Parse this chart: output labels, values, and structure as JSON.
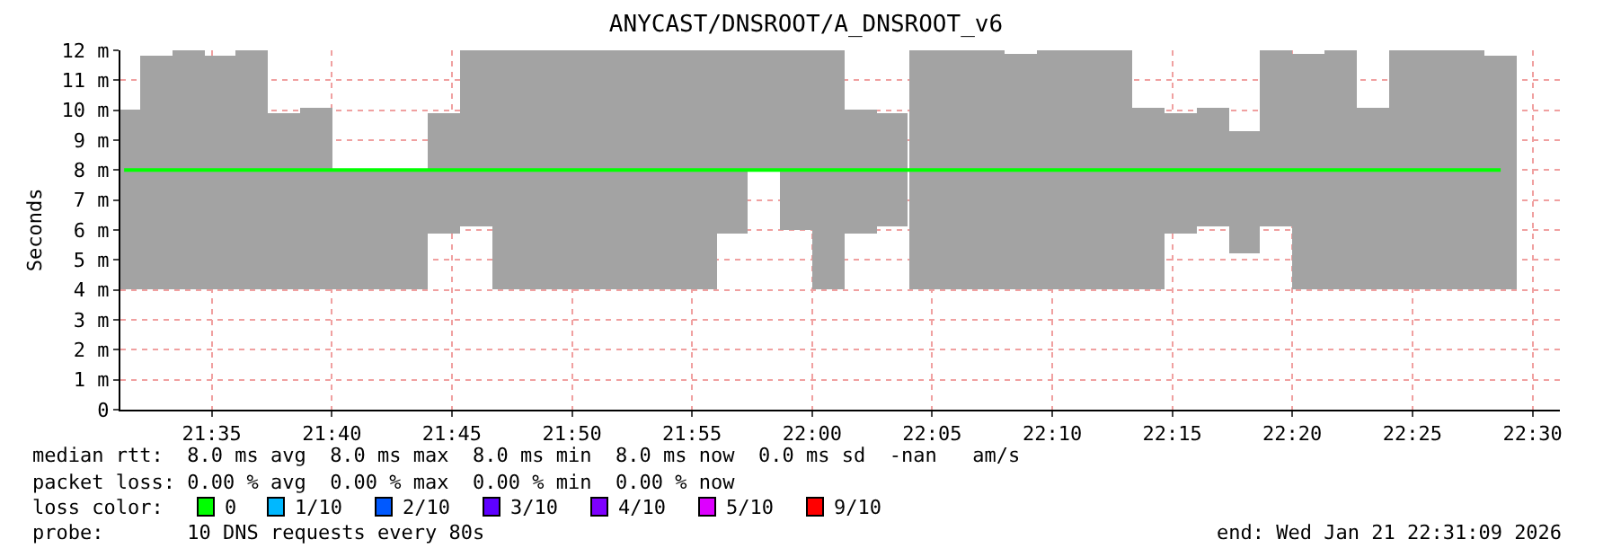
{
  "chart_data": {
    "type": "bar",
    "title": "ANYCAST/DNSROOT/A_DNSROOT_v6",
    "ylabel": "Seconds",
    "legend_title": "loss color:",
    "legend": "bottom",
    "grid": true,
    "x": [
      21.5225,
      21.5447,
      21.5669,
      21.5891,
      21.6113,
      21.6336,
      21.6558,
      21.678,
      21.7002,
      21.7224,
      21.7447,
      21.7669,
      21.7891,
      21.8113,
      21.8335,
      21.8558,
      21.878,
      21.9002,
      21.9224,
      21.9446,
      21.9669,
      21.9891,
      22.0113,
      22.0335,
      22.0557,
      22.078,
      22.1002,
      22.1224,
      22.1446,
      22.1668,
      22.1891,
      22.2113,
      22.2335,
      22.2557,
      22.2779,
      22.3002,
      22.3224,
      22.3446,
      22.3668,
      22.389,
      22.4113,
      22.4335,
      22.4557,
      22.4779
    ],
    "series": [
      {
        "color": "#a3a3a3",
        "base": [
          4,
          4,
          4,
          4,
          4,
          4,
          4,
          4,
          4,
          4,
          5.9,
          6.1,
          4,
          4,
          4,
          4,
          4,
          4,
          4,
          5.9,
          8,
          6,
          4,
          5.9,
          6.1,
          4,
          4,
          4,
          4,
          4,
          4,
          4,
          4,
          5.9,
          6.1,
          5.2,
          6.1,
          4,
          4,
          4,
          4,
          4,
          4,
          4
        ],
        "values": [
          6,
          7.8,
          8,
          7.8,
          8,
          5.9,
          6.1,
          4,
          4,
          4,
          4,
          5.9,
          8,
          8,
          8,
          8,
          8,
          8,
          8,
          6.1,
          4,
          6,
          8,
          4.1,
          3.8,
          8,
          8,
          8,
          7.9,
          8,
          8,
          8,
          6.1,
          4,
          4,
          4.1,
          5.9,
          7.9,
          8,
          6.1,
          8,
          8,
          8,
          7.8
        ]
      },
      {
        "type": "line",
        "name": "0",
        "color": "#00ff00",
        "values": [
          8,
          8,
          8,
          8,
          8,
          8,
          8,
          8,
          8,
          8,
          8,
          8,
          8,
          8,
          8,
          8,
          8,
          8,
          8,
          8,
          8,
          8,
          8,
          8,
          8,
          8,
          8,
          8,
          8,
          8,
          8,
          8,
          8,
          8,
          8,
          8,
          8,
          8,
          8,
          8,
          8,
          8,
          8,
          8
        ]
      },
      {
        "type": "line",
        "name": "1/10",
        "color": "#00b8ff",
        "values": [
          null,
          null,
          null,
          null,
          null,
          null,
          null,
          null,
          null,
          null,
          null,
          null,
          null,
          null,
          null,
          null,
          null,
          null,
          null,
          null,
          null,
          null,
          null,
          null,
          null,
          null,
          null,
          null,
          null,
          null,
          null,
          null,
          null,
          null,
          null,
          null,
          null,
          null,
          null,
          null,
          null,
          null,
          null,
          null
        ]
      },
      {
        "type": "line",
        "name": "2/10",
        "color": "#0059ff",
        "values": [
          null,
          null,
          null,
          null,
          null,
          null,
          null,
          null,
          null,
          null,
          null,
          null,
          null,
          null,
          null,
          null,
          null,
          null,
          null,
          null,
          null,
          null,
          null,
          null,
          null,
          null,
          null,
          null,
          null,
          null,
          null,
          null,
          null,
          null,
          null,
          null,
          null,
          null,
          null,
          null,
          null,
          null,
          null,
          null
        ]
      },
      {
        "type": "line",
        "name": "3/10",
        "color": "#5e00ff",
        "values": [
          null,
          null,
          null,
          null,
          null,
          null,
          null,
          null,
          null,
          null,
          null,
          null,
          null,
          null,
          null,
          null,
          null,
          null,
          null,
          null,
          null,
          null,
          null,
          null,
          null,
          null,
          null,
          null,
          null,
          null,
          null,
          null,
          null,
          null,
          null,
          null,
          null,
          null,
          null,
          null,
          null,
          null,
          null,
          null
        ]
      },
      {
        "type": "line",
        "name": "4/10",
        "color": "#7e00ff",
        "values": [
          null,
          null,
          null,
          null,
          null,
          null,
          null,
          null,
          null,
          null,
          null,
          null,
          null,
          null,
          null,
          null,
          null,
          null,
          null,
          null,
          null,
          null,
          null,
          null,
          null,
          null,
          null,
          null,
          null,
          null,
          null,
          null,
          null,
          null,
          null,
          null,
          null,
          null,
          null,
          null,
          null,
          null,
          null,
          null
        ]
      },
      {
        "type": "line",
        "name": "5/10",
        "color": "#dd00ff",
        "values": [
          null,
          null,
          null,
          null,
          null,
          null,
          null,
          null,
          null,
          null,
          null,
          null,
          null,
          null,
          null,
          null,
          null,
          null,
          null,
          null,
          null,
          null,
          null,
          null,
          null,
          null,
          null,
          null,
          null,
          null,
          null,
          null,
          null,
          null,
          null,
          null,
          null,
          null,
          null,
          null,
          null,
          null,
          null,
          null
        ]
      },
      {
        "type": "line",
        "name": "9/10",
        "color": "#ff0000",
        "values": [
          null,
          null,
          null,
          null,
          null,
          null,
          null,
          null,
          null,
          null,
          null,
          null,
          null,
          null,
          null,
          null,
          null,
          null,
          null,
          null,
          null,
          null,
          null,
          null,
          null,
          null,
          null,
          null,
          null,
          null,
          null,
          null,
          null,
          null,
          null,
          null,
          null,
          null,
          null,
          null,
          null,
          null,
          null,
          null
        ]
      }
    ],
    "xlim": [
      21.5199,
      22.519
    ],
    "xticks": [
      {
        "value": 21.5833,
        "label": "21:35"
      },
      {
        "value": 21.6667,
        "label": "21:40"
      },
      {
        "value": 21.75,
        "label": "21:45"
      },
      {
        "value": 21.8333,
        "label": "21:50"
      },
      {
        "value": 21.9167,
        "label": "21:55"
      },
      {
        "value": 22.0,
        "label": "22:00"
      },
      {
        "value": 22.0833,
        "label": "22:05"
      },
      {
        "value": 22.1667,
        "label": "22:10"
      },
      {
        "value": 22.25,
        "label": "22:15"
      },
      {
        "value": 22.3333,
        "label": "22:20"
      },
      {
        "value": 22.4167,
        "label": "22:25"
      },
      {
        "value": 22.5,
        "label": "22:30"
      }
    ],
    "ylim": [
      0,
      12
    ],
    "yticks": [
      0,
      {
        "value": 1,
        "label": "1 m"
      },
      {
        "value": 2,
        "label": "2 m"
      },
      {
        "value": 3,
        "label": "3 m"
      },
      {
        "value": 4,
        "label": "4 m"
      },
      {
        "value": 5,
        "label": "5 m"
      },
      {
        "value": 6,
        "label": "6 m"
      },
      {
        "value": 7,
        "label": "7 m"
      },
      {
        "value": 8,
        "label": "8 m"
      },
      {
        "value": 9,
        "label": "9 m"
      },
      {
        "value": 10,
        "label": "10 m"
      },
      {
        "value": 11,
        "label": "11 m"
      },
      {
        "value": 12,
        "label": "12 m"
      }
    ],
    "annotations": [
      "median rtt:  8.0 ms avg  8.0 ms max  8.0 ms min  8.0 ms now  0.0 ms sd  -nan   am/s",
      "packet loss: 0.00 % avg  0.00 % max  0.00 % min  0.00 % now",
      "probe:       10 DNS requests every 80s",
      "end: Wed Jan 21 22:31:09 2026"
    ]
  }
}
